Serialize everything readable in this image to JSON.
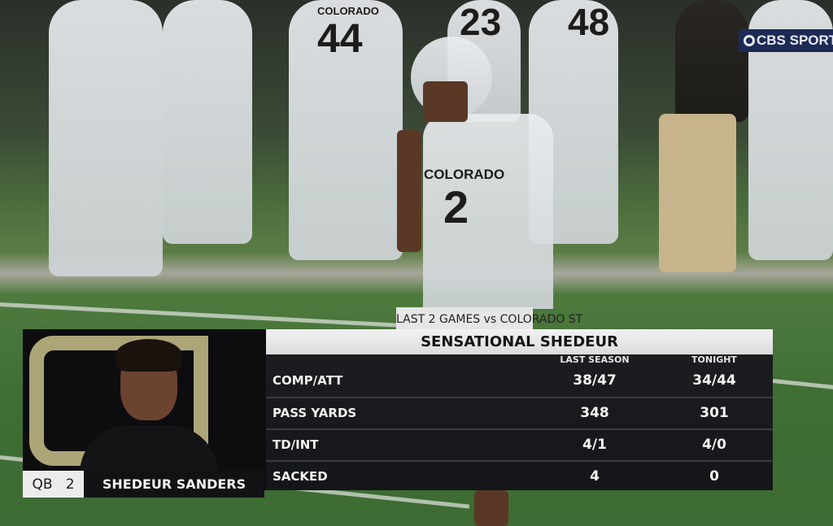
{
  "broadcast": {
    "network_logo": "CBS SPORTS",
    "network_logo_icon": "cbs-eye-icon"
  },
  "scene": {
    "jersey_numbers": [
      "44",
      "23",
      "48",
      "2"
    ],
    "jersey_text": [
      "COLORADO",
      "COLORADO"
    ]
  },
  "graphic": {
    "subtitle": "LAST 2 GAMES vs COLORADO ST",
    "title": "SENSATIONAL SHEDEUR",
    "columns": [
      "LAST SEASON",
      "TONIGHT"
    ],
    "rows": [
      {
        "label": "COMP/ATT",
        "last_season": "38/47",
        "tonight": "34/44"
      },
      {
        "label": "PASS YARDS",
        "last_season": "348",
        "tonight": "301"
      },
      {
        "label": "TD/INT",
        "last_season": "4/1",
        "tonight": "4/0"
      },
      {
        "label": "SACKED",
        "last_season": "4",
        "tonight": "0"
      }
    ],
    "player": {
      "position": "QB",
      "number": "2",
      "name": "SHEDEUR SANDERS"
    },
    "colors": {
      "panel": "#15161a",
      "title_bar": "#e6e6e6",
      "accent_gold": "#c9c18a"
    }
  }
}
